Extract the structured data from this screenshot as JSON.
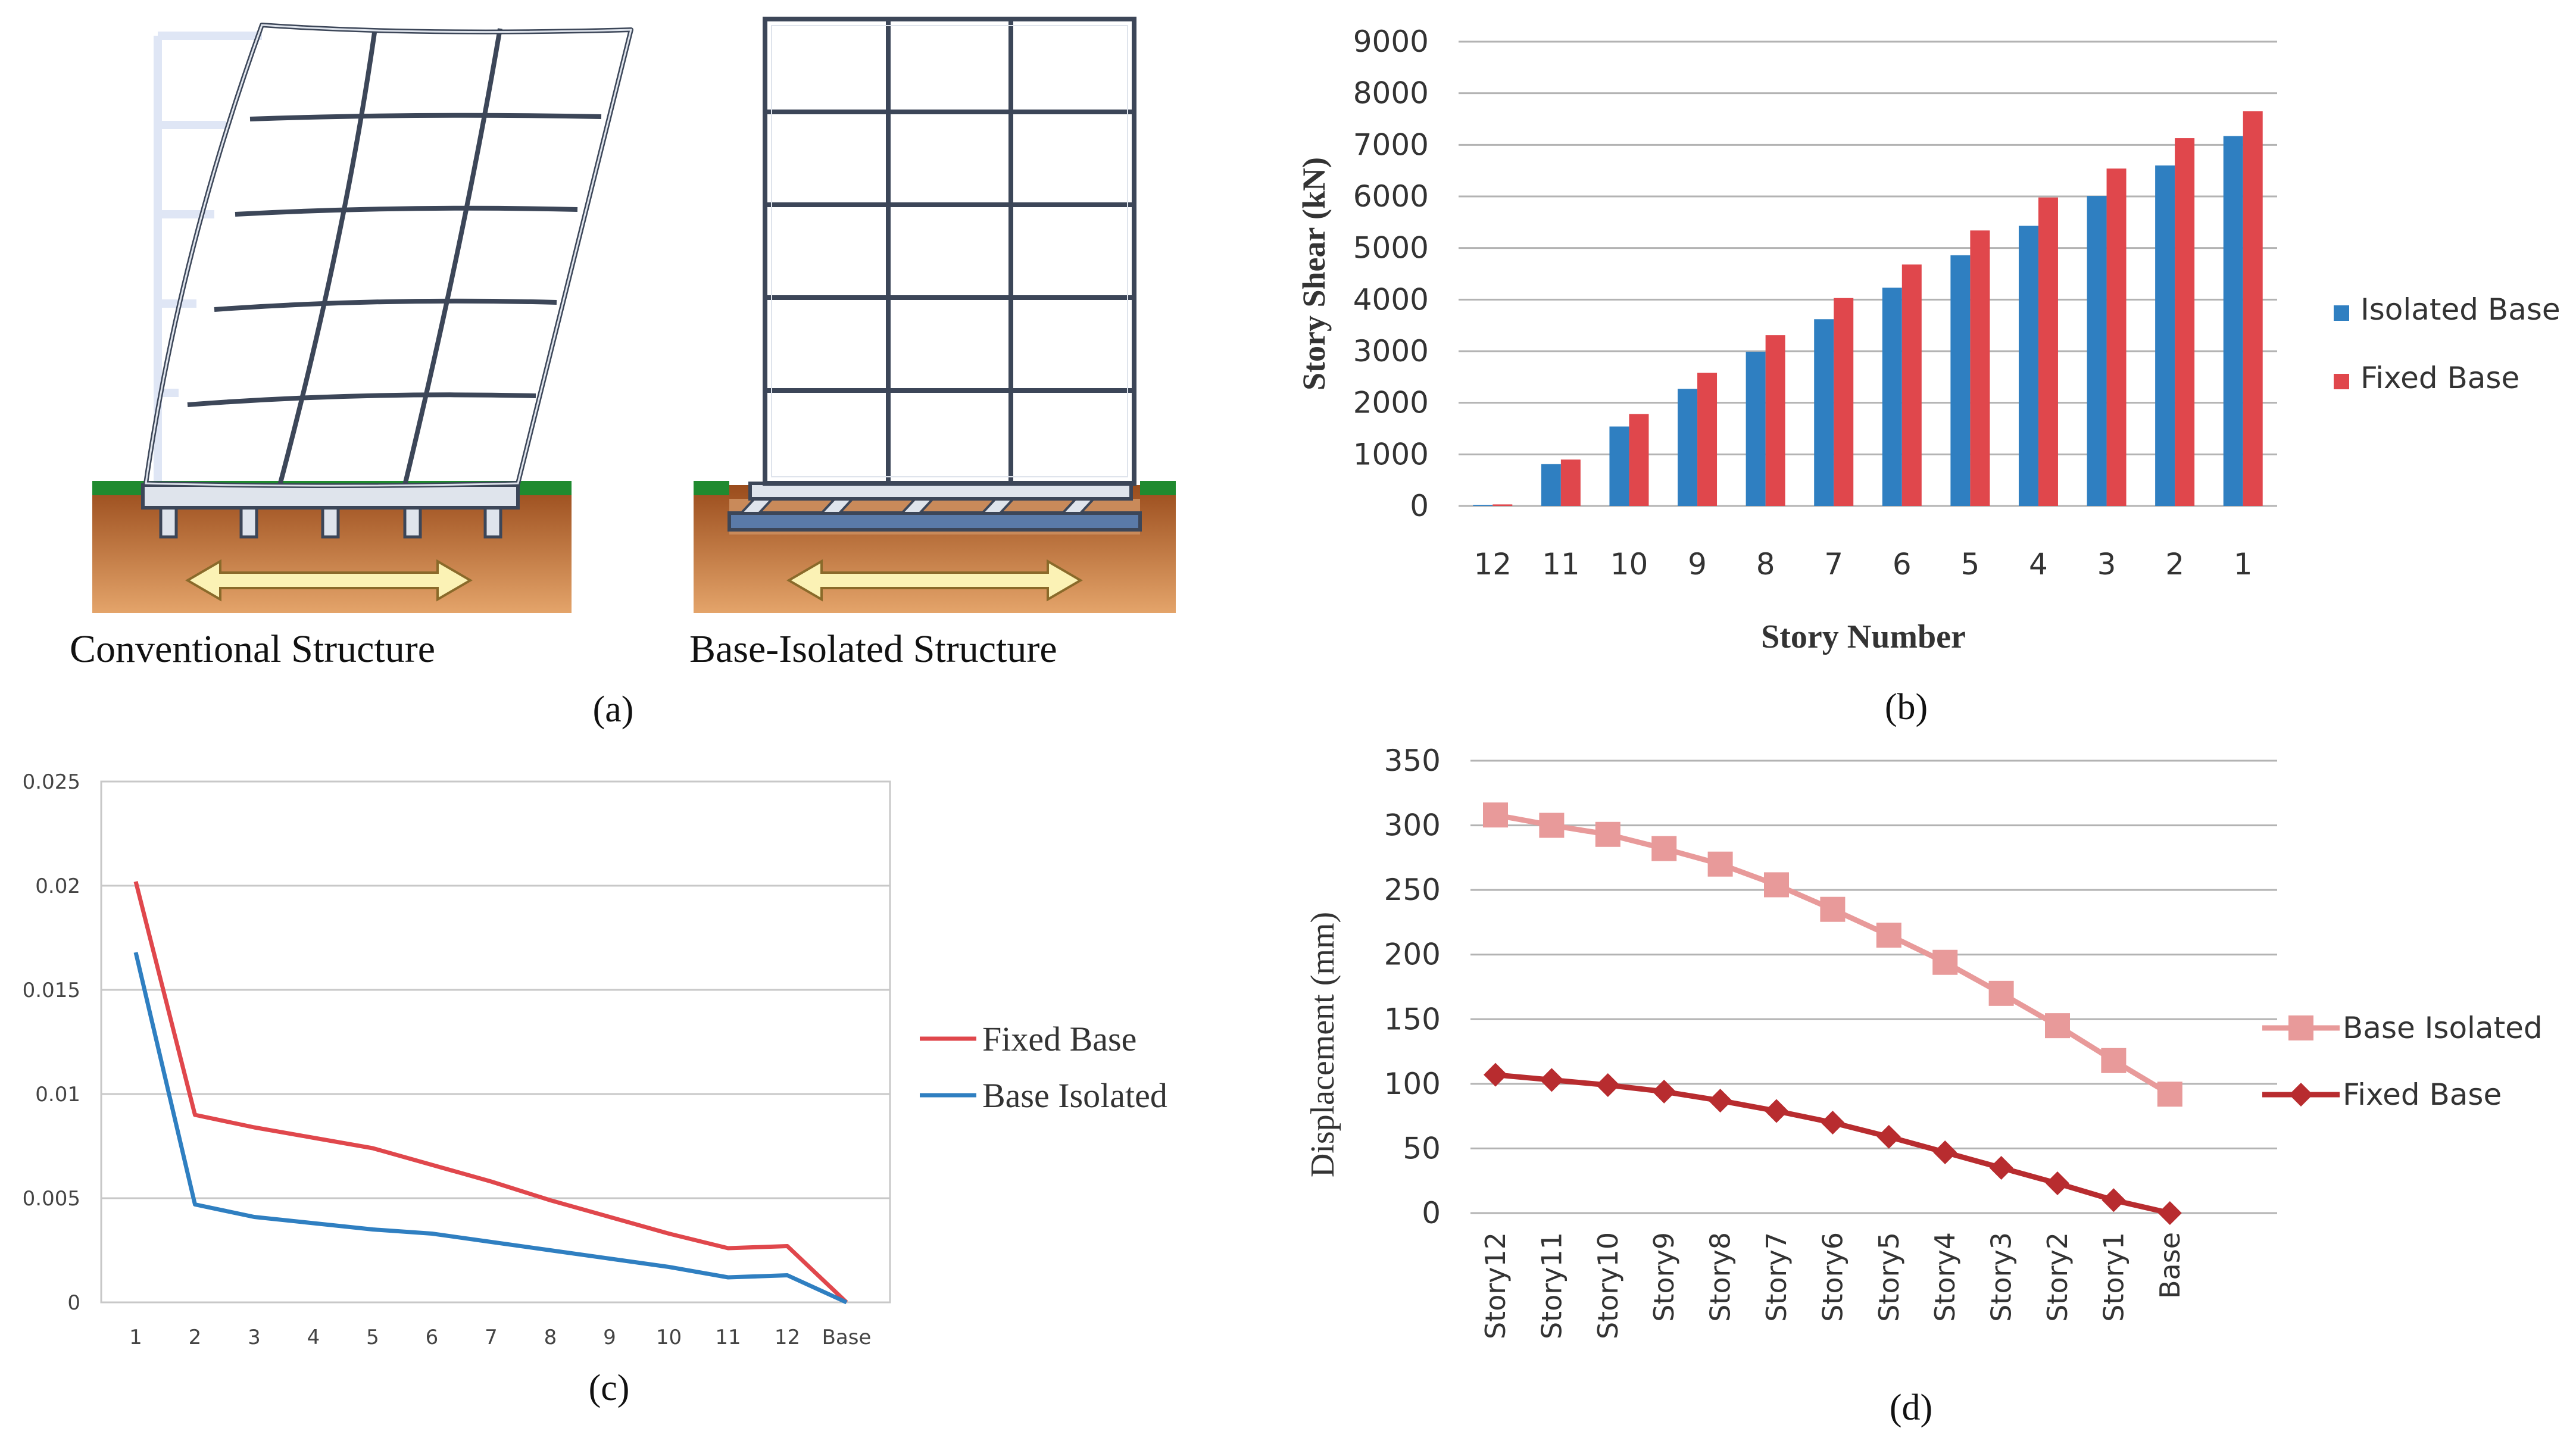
{
  "figure": {
    "panel_labels": [
      "(a)",
      "(b)",
      "(c)",
      "(d)"
    ],
    "colors": {
      "blue": "#2f7fc1",
      "red": "#e0474c",
      "pink": "#e89a9a",
      "darkred": "#b82c2f",
      "grid": "#b3b3b3",
      "frame_outline": "#3c4658",
      "frame_fill": "#dfe4ec",
      "soil_top": "#9a4c1c",
      "soil_bottom": "#e4a46a",
      "grass": "#1f8a2f",
      "arrow_fill": "#fbf2b5"
    }
  },
  "panel_a": {
    "conventional_label": "Conventional Structure",
    "isolated_label": "Base-Isolated Structure"
  },
  "chart_data": [
    {
      "type": "bar",
      "panel": "b",
      "title": "",
      "xlabel": "Story Number",
      "ylabel": "Story Shear (kN)",
      "ylim": [
        0,
        9000
      ],
      "yticks": [
        0,
        1000,
        2000,
        3000,
        4000,
        5000,
        6000,
        7000,
        8000,
        9000
      ],
      "grid": true,
      "legend": "right",
      "categories": [
        "12",
        "11",
        "10",
        "9",
        "8",
        "7",
        "6",
        "5",
        "4",
        "3",
        "2",
        "1"
      ],
      "series": [
        {
          "name": "Isolated Base",
          "color": "#2f7fc1",
          "values": [
            20,
            810,
            1540,
            2270,
            2990,
            3620,
            4230,
            4860,
            5430,
            6010,
            6600,
            7170
          ]
        },
        {
          "name": "Fixed Base",
          "color": "#e0474c",
          "values": [
            30,
            900,
            1780,
            2580,
            3310,
            4030,
            4680,
            5340,
            5980,
            6540,
            7130,
            7650
          ]
        }
      ]
    },
    {
      "type": "line",
      "panel": "c",
      "title": "",
      "xlabel": "",
      "ylabel": "",
      "ylim": [
        0,
        0.025
      ],
      "yticks": [
        0,
        0.005,
        0.01,
        0.015,
        0.02,
        0.025
      ],
      "ytick_labels": [
        "0",
        "0.005",
        "0.01",
        "0.015",
        "0.02",
        "0.025"
      ],
      "grid": true,
      "legend": "right",
      "categories": [
        "1",
        "2",
        "3",
        "4",
        "5",
        "6",
        "7",
        "8",
        "9",
        "10",
        "11",
        "12",
        "Base"
      ],
      "series": [
        {
          "name": "Fixed Base",
          "color": "#e0474c",
          "values": [
            0.0202,
            0.009,
            0.0084,
            0.0079,
            0.0074,
            0.0066,
            0.0058,
            0.0049,
            0.0041,
            0.0033,
            0.0026,
            0.0027,
            0.0
          ]
        },
        {
          "name": "Base Isolated",
          "color": "#2f7fc1",
          "values": [
            0.0168,
            0.0047,
            0.0041,
            0.0038,
            0.0035,
            0.0033,
            0.0029,
            0.0025,
            0.0021,
            0.0017,
            0.0012,
            0.0013,
            0.0
          ]
        }
      ]
    },
    {
      "type": "line",
      "panel": "d",
      "title": "",
      "xlabel": "",
      "ylabel": "Displacement (mm)",
      "ylim": [
        0,
        350
      ],
      "yticks": [
        0,
        50,
        100,
        150,
        200,
        250,
        300,
        350
      ],
      "grid": true,
      "legend": "right",
      "categories": [
        "Story12",
        "Story11",
        "Story10",
        "Story9",
        "Story8",
        "Story7",
        "Story6",
        "Story5",
        "Story4",
        "Story3",
        "Story2",
        "Story1",
        "Base"
      ],
      "series": [
        {
          "name": "Base Isolated",
          "color": "#e89a9a",
          "marker": "square",
          "values": [
            308,
            300,
            293,
            282,
            270,
            254,
            235,
            215,
            194,
            170,
            145,
            118,
            92
          ]
        },
        {
          "name": "Fixed Base",
          "color": "#b82c2f",
          "marker": "diamond",
          "values": [
            107,
            103,
            99,
            94,
            87,
            79,
            70,
            59,
            47,
            35,
            23,
            10,
            0
          ]
        }
      ]
    }
  ]
}
